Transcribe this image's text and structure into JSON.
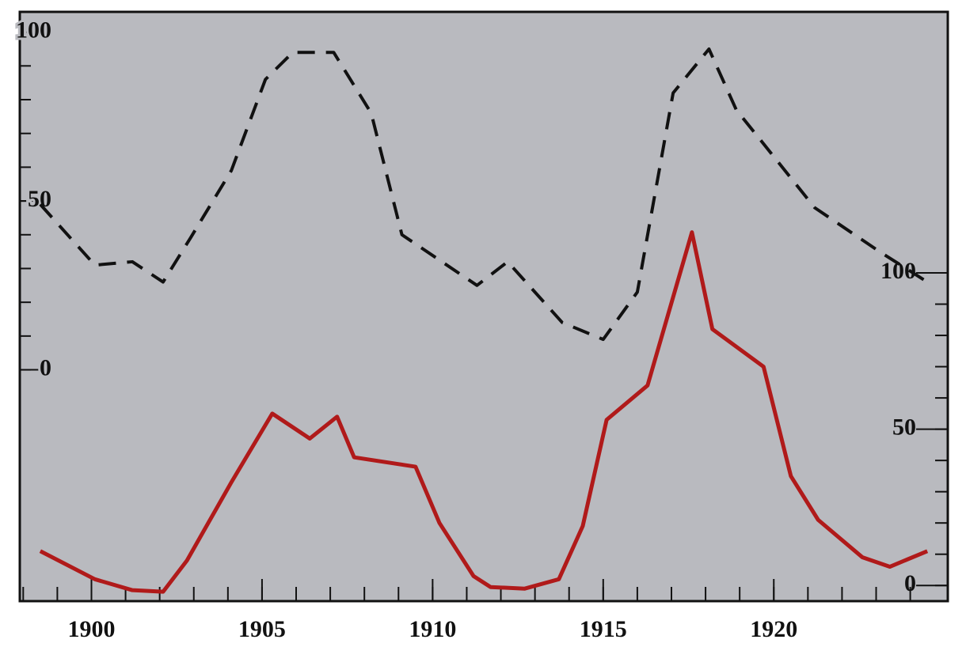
{
  "chart_data": {
    "type": "line",
    "xlim": [
      1897.9,
      1925.1
    ],
    "xticks": [
      1900,
      1905,
      1910,
      1915,
      1920
    ],
    "xminorticks": [
      1898,
      1899,
      1900,
      1901,
      1902,
      1903,
      1904,
      1905,
      1906,
      1907,
      1908,
      1909,
      1910,
      1911,
      1912,
      1913,
      1914,
      1915,
      1916,
      1917,
      1918,
      1919,
      1920,
      1921,
      1922,
      1923,
      1924
    ],
    "ylim": [
      -68.5,
      106
    ],
    "yticks": [
      0,
      50,
      100
    ],
    "yminorticks": [
      0,
      10,
      20,
      30,
      40,
      50,
      60,
      70,
      80,
      90,
      100
    ],
    "y2lim": [
      -5,
      183.5
    ],
    "y2ticks": [
      0,
      50,
      100
    ],
    "y2minorticks": [
      0,
      10,
      20,
      30,
      40,
      50,
      60,
      70,
      80,
      90,
      100
    ],
    "series": [
      {
        "color": "#111111",
        "dash": true,
        "x": [
          1898.5,
          1900.1,
          1901.2,
          1902.1,
          1902.9,
          1904.1,
          1905.1,
          1905.9,
          1907.1,
          1908.2,
          1909.1,
          1911.3,
          1912.2,
          1913.8,
          1915.0,
          1916.0,
          1917.05,
          1918.1,
          1918.9,
          1921.2,
          1923.1,
          1924.5
        ],
        "values": [
          49,
          31,
          32,
          26,
          39,
          59,
          86,
          94,
          94,
          76,
          40,
          25,
          32,
          14,
          9,
          23,
          82,
          95,
          77,
          48,
          35,
          26
        ]
      },
      {
        "color": "#b01a1a",
        "dash": false,
        "axis": "y2",
        "x": [
          1898.5,
          1900.1,
          1901.2,
          1902.1,
          1902.8,
          1904.1,
          1905.3,
          1906.4,
          1907.2,
          1907.7,
          1909.5,
          1910.2,
          1911.2,
          1911.7,
          1912.7,
          1913.7,
          1914.4,
          1915.1,
          1916.3,
          1917.6,
          1918.2,
          1919.7,
          1920.5,
          1921.3,
          1922.6,
          1923.4,
          1924.5
        ],
        "values": [
          11,
          2,
          -1.5,
          -2,
          8,
          33,
          55,
          47,
          54,
          41,
          38,
          20,
          3,
          -0.5,
          -1,
          2,
          19,
          53,
          64,
          113,
          82,
          70,
          35,
          21,
          9,
          6,
          11
        ]
      }
    ]
  }
}
